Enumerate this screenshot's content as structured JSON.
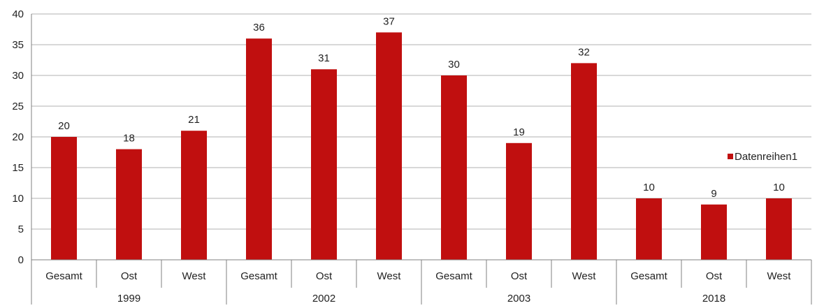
{
  "chart_data": {
    "type": "bar",
    "groups": [
      {
        "label": "1999",
        "categories": [
          "Gesamt",
          "Ost",
          "West"
        ]
      },
      {
        "label": "2002",
        "categories": [
          "Gesamt",
          "Ost",
          "West"
        ]
      },
      {
        "label": "2003",
        "categories": [
          "Gesamt",
          "Ost",
          "West"
        ]
      },
      {
        "label": "2018",
        "categories": [
          "Gesamt",
          "Ost",
          "West"
        ]
      }
    ],
    "series": [
      {
        "name": "Datenreihen1",
        "values": [
          20,
          18,
          21,
          36,
          31,
          37,
          30,
          19,
          32,
          10,
          9,
          10
        ]
      }
    ],
    "ylim": [
      0,
      40
    ],
    "yticks": [
      0,
      5,
      10,
      15,
      20,
      25,
      30,
      35,
      40
    ],
    "grid": true,
    "legend_position": "right",
    "data_labels": true,
    "colors": {
      "bar": "#c00f0f",
      "grid": "#b0b0b0",
      "axis": "#808080"
    }
  }
}
